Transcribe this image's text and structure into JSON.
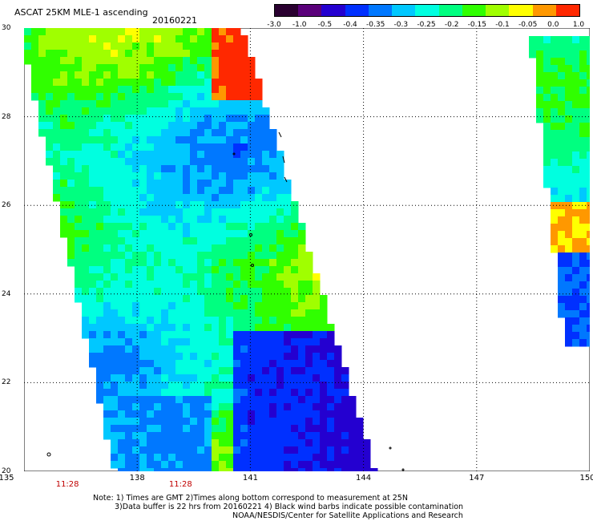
{
  "header": {
    "product_title": "ASCAT 25KM MLE-1 ascending",
    "date": "20160221"
  },
  "colorbar": {
    "labels": [
      "-3.0",
      "-1.0",
      "-0.5",
      "-0.4",
      "-0.35",
      "-0.3",
      "-0.25",
      "-0.2",
      "-0.15",
      "-0.1",
      "-0.05",
      "0.0",
      "1.0"
    ],
    "colors": [
      "#2a0030",
      "#5a007a",
      "#2400d0",
      "#0030ff",
      "#0078ff",
      "#00c8ff",
      "#00ffe0",
      "#00ff80",
      "#30ff00",
      "#a0ff00",
      "#ffff00",
      "#ff9800",
      "#ff2800"
    ]
  },
  "map": {
    "lon_labels": [
      "135",
      "138",
      "141",
      "144",
      "147",
      "150"
    ],
    "lat_labels": [
      "20",
      "22",
      "24",
      "26",
      "28",
      "30"
    ],
    "time_labels": [
      "11:28",
      "11:28"
    ],
    "time_label_lon": [
      137,
      140
    ],
    "lon_range": [
      135,
      150
    ],
    "lat_range": [
      20,
      30
    ]
  },
  "notes": {
    "line1": "Note: 1) Times are GMT 2)Times along bottom correspond to measurement at 25N",
    "line2": "3)Data buffer is 22 hrs from 20160221 4) Black wind barbs indicate possible contamination",
    "line3": "NOAA/NESDIS/Center for Satellite Applications and Research"
  }
}
